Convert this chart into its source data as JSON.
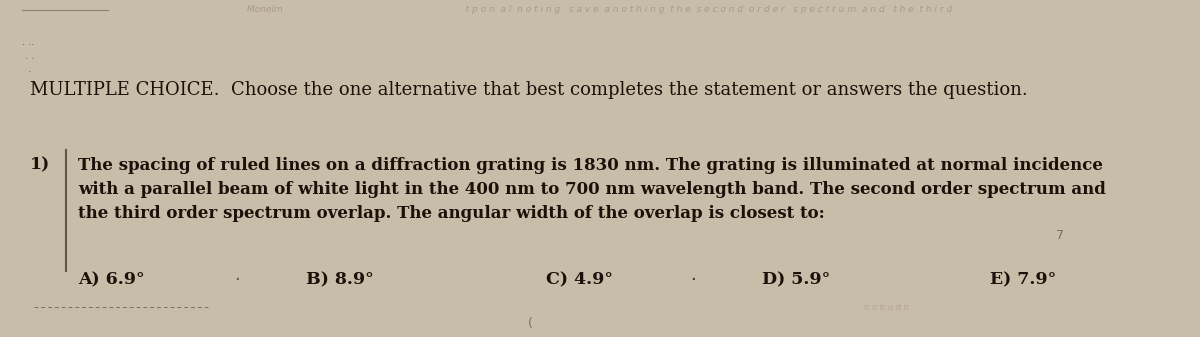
{
  "background_color": "#c8bda8",
  "title_text": "MULTIPLE CHOICE.  Choose the one alternative that best completes the statement or answers the question.",
  "title_fontsize": 13.0,
  "question_number": "1)",
  "question_body": "The spacing of ruled lines on a diffraction grating is 1830 nm. The grating is illuminated at normal incidence\nwith a parallel beam of white light in the 400 nm to 700 nm wavelength band. The second order spectrum and\nthe third order spectrum overlap. The angular width of the overlap is closest to:",
  "question_fontsize": 12.0,
  "choices": [
    "A) 6.9°",
    "B) 8.9°",
    "C) 4.9°",
    "D) 5.9°",
    "E) 7.9°"
  ],
  "choices_fontsize": 12.5,
  "text_color": "#1a120a",
  "watermark_color": "#9e8f7e",
  "watermark_fontsize": 6.5,
  "watermark_text": "Monelm                     t p o n  a l  n o t i n g   s a v e  a n o t h i n g  t h e  s e c o n d  o r d e r   s p e c t r u m  a n d   t h e  t h i r d"
}
